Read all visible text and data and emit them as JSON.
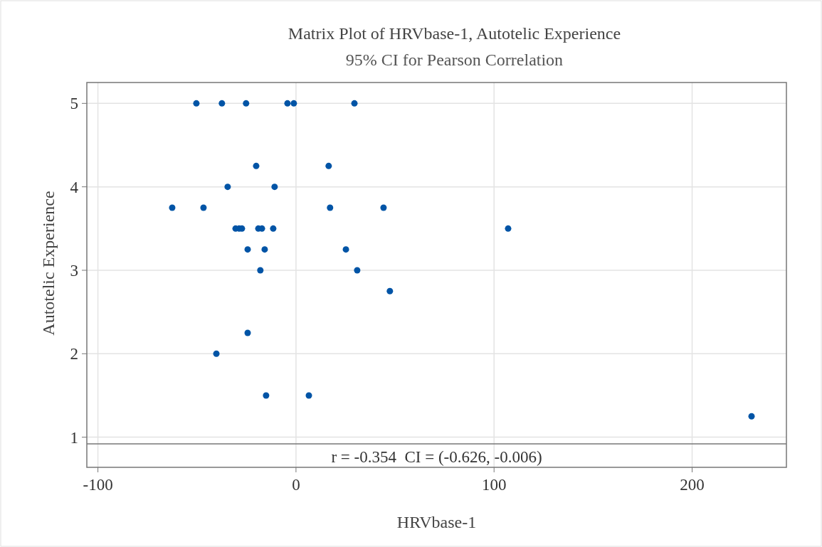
{
  "chart_data": {
    "type": "scatter",
    "title": "Matrix Plot of HRVbase-1, Autotelic Experience",
    "subtitle": "95% CI for Pearson Correlation",
    "xlabel": "HRVbase-1",
    "ylabel": "Autotelic Experience",
    "x": [
      -50.3,
      -37.4,
      -25.2,
      -4.3,
      -1.1,
      29.5,
      -20.1,
      16.5,
      -34.5,
      -10.8,
      -62.5,
      -46.7,
      17.2,
      44.2,
      -30.5,
      -28.7,
      -27.3,
      -19.0,
      -17.2,
      -11.5,
      107.1,
      -24.4,
      -15.8,
      25.2,
      -18.0,
      30.9,
      47.4,
      -24.4,
      -40.2,
      -15.1,
      6.5,
      230
    ],
    "series": [
      {
        "color": "#0054a6",
        "values": [
          5,
          5,
          5,
          5,
          5,
          5,
          4.25,
          4.25,
          4,
          4,
          3.75,
          3.75,
          3.75,
          3.75,
          3.5,
          3.5,
          3.5,
          3.5,
          3.5,
          3.5,
          3.5,
          3.25,
          3.25,
          3.25,
          3,
          3,
          2.75,
          2.25,
          2,
          1.5,
          1.5,
          1.25
        ]
      }
    ],
    "xlim": [
      -105.6,
      247.6
    ],
    "ylim": [
      0.92,
      5.25
    ],
    "xticks": [
      -100,
      0,
      100,
      200
    ],
    "yticks": [
      1,
      2,
      3,
      4,
      5
    ],
    "grid": true,
    "marker": "circle",
    "annotations": [
      "r = -0.354  CI = (-0.626, -0.006)"
    ]
  }
}
